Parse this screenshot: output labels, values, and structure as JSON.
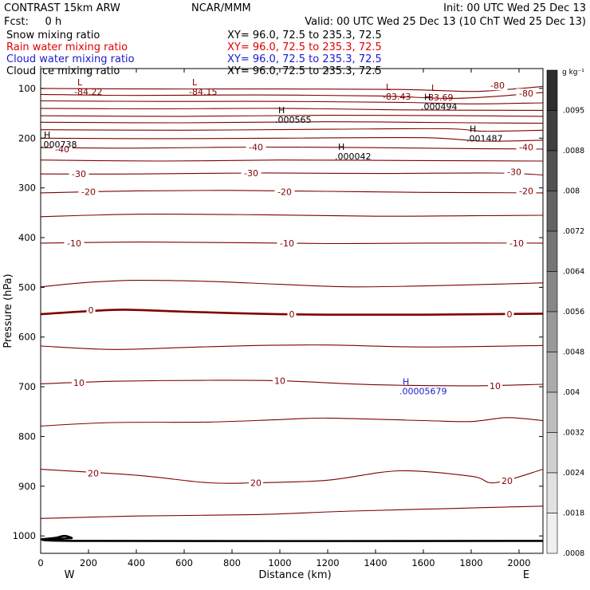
{
  "header": {
    "title_left": "CONTRAST 15km ARW",
    "title_center": "NCAR/MMM",
    "init": "Init: 00 UTC Wed 25 Dec 13",
    "fcst": "Fcst:     0 h",
    "valid": "Valid: 00 UTC Wed 25 Dec 13 (10 ChT Wed 25 Dec 13)",
    "fields": [
      {
        "label": "Snow mixing ratio",
        "xy": "XY=  96.0, 72.5 to 235.3, 72.5",
        "color": "#000000"
      },
      {
        "label": "Rain water mixing ratio",
        "xy": "XY=  96.0, 72.5 to 235.3, 72.5",
        "color": "#e00000"
      },
      {
        "label": "Cloud water mixing ratio",
        "xy": "XY=  96.0, 72.5 to 235.3, 72.5",
        "color": "#1a1ad0"
      },
      {
        "label": "Cloud ice mixing ratio",
        "xy": "XY=  96.0, 72.5 to 235.3, 72.5",
        "color": "#000000"
      }
    ]
  },
  "colorbar": {
    "unit": "g kg⁻¹",
    "labels": [
      ".0095",
      ".0088",
      ".008",
      ".0072",
      ".0064",
      ".0056",
      ".0048",
      ".004",
      ".0032",
      ".0024",
      ".0018",
      ".0008"
    ],
    "colors": [
      "#2e2e2e",
      "#3f3f3f",
      "#515151",
      "#636363",
      "#757575",
      "#878787",
      "#999999",
      "#ababab",
      "#bdbdbd",
      "#cfcfcf",
      "#e1e1e1",
      "#f0f0f0"
    ]
  },
  "chart_data": {
    "type": "contour",
    "xlabel": "Distance (km)",
    "ylabel": "Pressure (hPa)",
    "x_ticks": [
      0,
      200,
      400,
      600,
      800,
      1000,
      1200,
      1400,
      1600,
      1800,
      2000
    ],
    "y_ticks": [
      100,
      200,
      300,
      400,
      500,
      600,
      700,
      800,
      900,
      1000
    ],
    "xlim": [
      0,
      2100
    ],
    "ylim": [
      1035,
      60
    ],
    "left_label": "W",
    "right_label": "E",
    "contour_color": "#800000",
    "isotherms": [
      {
        "value": -80,
        "label": "-80",
        "points": [
          [
            0,
            100
          ],
          [
            500,
            101
          ],
          [
            1000,
            101
          ],
          [
            1500,
            102
          ],
          [
            1800,
            106
          ],
          [
            1950,
            102
          ],
          [
            2100,
            96
          ]
        ],
        "label_at": [
          [
            1910,
            94
          ]
        ]
      },
      {
        "value": -80,
        "label": "-80",
        "points": [
          [
            0,
            112
          ],
          [
            400,
            114
          ],
          [
            900,
            113
          ],
          [
            1400,
            115
          ],
          [
            1700,
            120
          ],
          [
            1900,
            116
          ],
          [
            2100,
            108
          ]
        ],
        "label_at": [
          [
            2030,
            110
          ]
        ]
      },
      {
        "value": -70,
        "label": "",
        "points": [
          [
            0,
            125
          ],
          [
            500,
            126
          ],
          [
            1000,
            126
          ],
          [
            1500,
            128
          ],
          [
            1800,
            131
          ],
          [
            2100,
            129
          ]
        ]
      },
      {
        "value": -70,
        "label": "",
        "points": [
          [
            0,
            140
          ],
          [
            500,
            141
          ],
          [
            1000,
            140
          ],
          [
            1500,
            143
          ],
          [
            2100,
            144
          ]
        ]
      },
      {
        "value": -60,
        "label": "",
        "points": [
          [
            0,
            155
          ],
          [
            600,
            156
          ],
          [
            1200,
            154
          ],
          [
            1800,
            155
          ],
          [
            2100,
            156
          ]
        ]
      },
      {
        "value": -60,
        "label": "",
        "points": [
          [
            0,
            168
          ],
          [
            600,
            169
          ],
          [
            1200,
            167
          ],
          [
            1800,
            169
          ],
          [
            2100,
            170
          ]
        ]
      },
      {
        "value": -50,
        "label": "",
        "points": [
          [
            0,
            183
          ],
          [
            600,
            184
          ],
          [
            1200,
            182
          ],
          [
            1700,
            181
          ],
          [
            1850,
            186
          ],
          [
            2100,
            184
          ]
        ]
      },
      {
        "value": -50,
        "label": "",
        "points": [
          [
            0,
            200
          ],
          [
            500,
            201
          ],
          [
            1000,
            200
          ],
          [
            1600,
            199
          ],
          [
            1850,
            206
          ],
          [
            2100,
            204
          ]
        ]
      },
      {
        "value": -40,
        "label": "-40",
        "points": [
          [
            0,
            219
          ],
          [
            400,
            220
          ],
          [
            900,
            218
          ],
          [
            1400,
            219
          ],
          [
            1800,
            221
          ],
          [
            2100,
            222
          ]
        ],
        "label_at": [
          [
            90,
            222
          ],
          [
            900,
            218
          ],
          [
            2030,
            218
          ]
        ]
      },
      {
        "value": -35,
        "label": "",
        "points": [
          [
            0,
            244
          ],
          [
            500,
            246
          ],
          [
            1000,
            244
          ],
          [
            1600,
            245
          ],
          [
            2100,
            246
          ]
        ]
      },
      {
        "value": -30,
        "label": "-30",
        "points": [
          [
            0,
            272
          ],
          [
            400,
            272
          ],
          [
            900,
            270
          ],
          [
            1400,
            271
          ],
          [
            1900,
            270
          ],
          [
            2100,
            274
          ]
        ],
        "label_at": [
          [
            160,
            272
          ],
          [
            880,
            270
          ],
          [
            1980,
            268
          ]
        ]
      },
      {
        "value": -20,
        "label": "-20",
        "points": [
          [
            0,
            310
          ],
          [
            400,
            306
          ],
          [
            800,
            305
          ],
          [
            1200,
            307
          ],
          [
            1600,
            309
          ],
          [
            2100,
            310
          ]
        ],
        "label_at": [
          [
            200,
            308
          ],
          [
            1020,
            308
          ],
          [
            2030,
            306
          ]
        ]
      },
      {
        "value": -15,
        "label": "",
        "points": [
          [
            0,
            358
          ],
          [
            400,
            353
          ],
          [
            900,
            354
          ],
          [
            1400,
            357
          ],
          [
            1800,
            356
          ],
          [
            2100,
            355
          ]
        ]
      },
      {
        "value": -10,
        "label": "-10",
        "points": [
          [
            0,
            411
          ],
          [
            400,
            409
          ],
          [
            800,
            410
          ],
          [
            1200,
            412
          ],
          [
            1600,
            411
          ],
          [
            2100,
            411
          ]
        ],
        "label_at": [
          [
            140,
            411
          ],
          [
            1030,
            411
          ],
          [
            1990,
            411
          ]
        ]
      },
      {
        "value": -5,
        "label": "",
        "points": [
          [
            0,
            499
          ],
          [
            200,
            490
          ],
          [
            400,
            486
          ],
          [
            700,
            488
          ],
          [
            1000,
            494
          ],
          [
            1300,
            499
          ],
          [
            1700,
            496
          ],
          [
            2100,
            491
          ]
        ]
      },
      {
        "value": 0,
        "label": "0",
        "points": [
          [
            0,
            554
          ],
          [
            200,
            548
          ],
          [
            350,
            545
          ],
          [
            600,
            549
          ],
          [
            900,
            553
          ],
          [
            1200,
            555
          ],
          [
            1600,
            555
          ],
          [
            2100,
            553
          ]
        ],
        "bold": true,
        "label_at": [
          [
            210,
            546
          ],
          [
            1050,
            554
          ],
          [
            1960,
            554
          ]
        ]
      },
      {
        "value": 5,
        "label": "",
        "points": [
          [
            0,
            618
          ],
          [
            300,
            625
          ],
          [
            600,
            621
          ],
          [
            900,
            617
          ],
          [
            1200,
            616
          ],
          [
            1600,
            620
          ],
          [
            2100,
            617
          ]
        ]
      },
      {
        "value": 10,
        "label": "10",
        "points": [
          [
            0,
            694
          ],
          [
            300,
            689
          ],
          [
            700,
            687
          ],
          [
            1000,
            688
          ],
          [
            1400,
            696
          ],
          [
            1800,
            698
          ],
          [
            2100,
            695
          ]
        ],
        "label_at": [
          [
            160,
            692
          ],
          [
            1000,
            688
          ],
          [
            1900,
            698
          ]
        ]
      },
      {
        "value": 15,
        "label": "",
        "points": [
          [
            0,
            779
          ],
          [
            300,
            772
          ],
          [
            700,
            771
          ],
          [
            1000,
            766
          ],
          [
            1200,
            763
          ],
          [
            1600,
            768
          ],
          [
            1800,
            770
          ],
          [
            1950,
            762
          ],
          [
            2100,
            768
          ]
        ]
      },
      {
        "value": 20,
        "label": "20",
        "points": [
          [
            0,
            866
          ],
          [
            400,
            878
          ],
          [
            700,
            893
          ],
          [
            900,
            893
          ],
          [
            1200,
            888
          ],
          [
            1500,
            869
          ],
          [
            1800,
            880
          ],
          [
            1900,
            893
          ],
          [
            2100,
            866
          ]
        ],
        "label_at": [
          [
            220,
            874
          ],
          [
            900,
            893
          ],
          [
            1950,
            889
          ]
        ]
      },
      {
        "value": 25,
        "label": "",
        "points": [
          [
            0,
            965
          ],
          [
            400,
            960
          ],
          [
            900,
            957
          ],
          [
            1300,
            950
          ],
          [
            1700,
            945
          ],
          [
            2100,
            940
          ]
        ]
      }
    ],
    "surface": {
      "points": [
        [
          0,
          1007
        ],
        [
          60,
          1004
        ],
        [
          100,
          1000
        ],
        [
          130,
          1004
        ],
        [
          160,
          1010
        ],
        [
          2100,
          1010
        ]
      ]
    },
    "extrema": [
      {
        "type": "L",
        "value": "-84.22",
        "x": 160,
        "p": 100,
        "color": "#800000"
      },
      {
        "type": "L",
        "value": "-84.15",
        "x": 640,
        "p": 100,
        "color": "#800000"
      },
      {
        "type": "L",
        "value": "-83.43",
        "x": 1450,
        "p": 110,
        "color": "#800000"
      },
      {
        "type": "L",
        "value": "83.69",
        "x": 1640,
        "p": 111,
        "color": "#800000"
      },
      {
        "type": "H",
        "value": ".000494",
        "x": 1610,
        "p": 130,
        "color": "#000000"
      },
      {
        "type": "H",
        "value": ".000565",
        "x": 1000,
        "p": 156,
        "color": "#000000"
      },
      {
        "type": "H",
        "value": ".001487",
        "x": 1800,
        "p": 194,
        "color": "#000000"
      },
      {
        "type": "H",
        "value": ".000738",
        "x": 20,
        "p": 206,
        "color": "#000000"
      },
      {
        "type": "H",
        "value": ".000042",
        "x": 1250,
        "p": 230,
        "color": "#000000"
      },
      {
        "type": "H",
        "value": ".00005679",
        "x": 1520,
        "p": 702,
        "color": "#1a1ad0"
      }
    ]
  }
}
